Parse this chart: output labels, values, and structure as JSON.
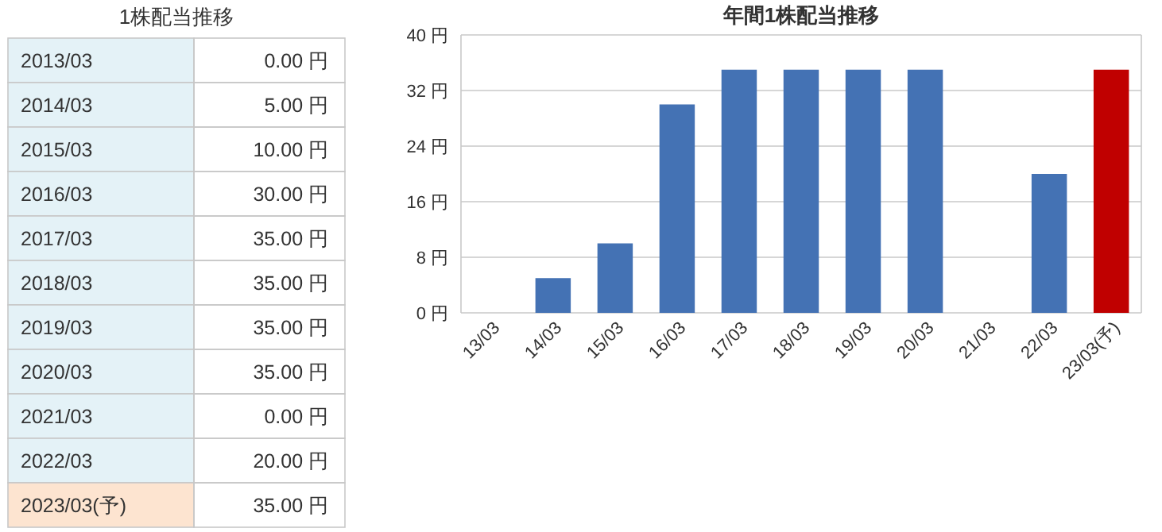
{
  "chart_data": [
    {
      "type": "other",
      "title": "1株配当推移",
      "categories": [
        "2013/03",
        "2014/03",
        "2015/03",
        "2016/03",
        "2017/03",
        "2018/03",
        "2019/03",
        "2020/03",
        "2021/03",
        "2022/03",
        "2023/03(予)"
      ],
      "values": [
        0,
        5,
        10,
        30,
        35,
        35,
        35,
        35,
        0,
        20,
        35
      ],
      "value_labels": [
        "0.00 円",
        "5.00 円",
        "10.00 円",
        "30.00 円",
        "35.00 円",
        "35.00 円",
        "35.00 円",
        "35.00 円",
        "0.00 円",
        "20.00 円",
        "35.00 円"
      ],
      "colors": [
        "#e4f2f7",
        "#e4f2f7",
        "#e4f2f7",
        "#e4f2f7",
        "#e4f2f7",
        "#e4f2f7",
        "#e4f2f7",
        "#e4f2f7",
        "#e4f2f7",
        "#e4f2f7",
        "#fde4d0"
      ]
    },
    {
      "type": "bar",
      "title": "年間1株配当推移",
      "categories": [
        "13/03",
        "14/03",
        "15/03",
        "16/03",
        "17/03",
        "18/03",
        "19/03",
        "20/03",
        "21/03",
        "22/03",
        "23/03(予)"
      ],
      "values": [
        0,
        5,
        10,
        30,
        35,
        35,
        35,
        35,
        0,
        20,
        35
      ],
      "colors": [
        "#4472b4",
        "#4472b4",
        "#4472b4",
        "#4472b4",
        "#4472b4",
        "#4472b4",
        "#4472b4",
        "#4472b4",
        "#4472b4",
        "#4472b4",
        "#c00000"
      ],
      "ylim": [
        0,
        40
      ],
      "yticks": [
        {
          "value": 0,
          "label": "0 円"
        },
        {
          "value": 8,
          "label": "8 円"
        },
        {
          "value": 16,
          "label": "16 円"
        },
        {
          "value": 24,
          "label": "24 円"
        },
        {
          "value": 32,
          "label": "32 円"
        },
        {
          "value": 40,
          "label": "40 円"
        }
      ],
      "grid": "y"
    }
  ]
}
